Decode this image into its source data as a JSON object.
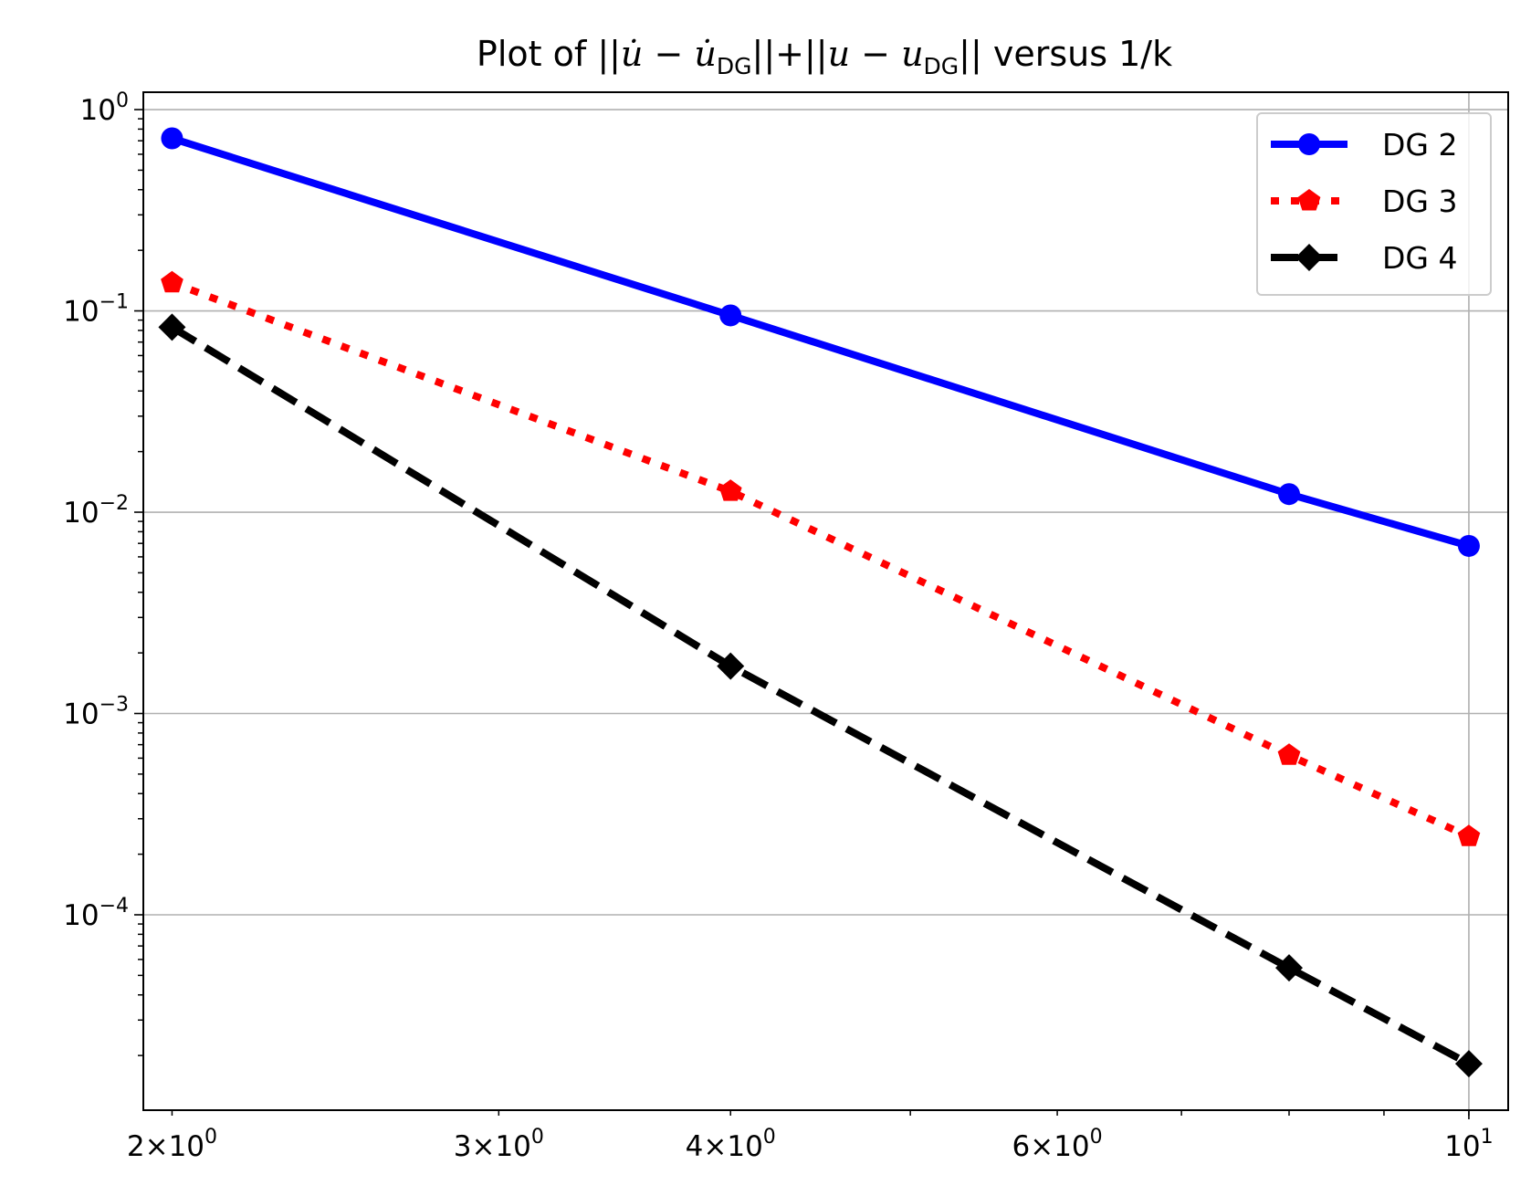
{
  "chart_data": {
    "type": "line",
    "title": {
      "prefix": "Plot of ||",
      "udot1": "u̇",
      "minus1": " − ",
      "udot2": "u̇",
      "sub1": "DG",
      "mid": "||+||",
      "u1": "u",
      "minus2": " − ",
      "u2": "u",
      "sub2": "DG",
      "suffix": "|| versus 1/k"
    },
    "xlabel": "",
    "ylabel": "",
    "x_scale": "log",
    "y_scale": "log",
    "xlim": [
      1.93,
      10.5
    ],
    "ylim": [
      1.07e-05,
      1.22
    ],
    "grid": true,
    "legend_position": "top-right",
    "x_ticks": [
      {
        "value": 2,
        "mantissa": "2",
        "times": "×",
        "base": "10",
        "exp": "0"
      },
      {
        "value": 3,
        "mantissa": "3",
        "times": "×",
        "base": "10",
        "exp": "0"
      },
      {
        "value": 4,
        "mantissa": "4",
        "times": "×",
        "base": "10",
        "exp": "0"
      },
      {
        "value": 6,
        "mantissa": "6",
        "times": "×",
        "base": "10",
        "exp": "0"
      },
      {
        "value": 10,
        "mantissa": "",
        "times": "",
        "base": "10",
        "exp": "1"
      }
    ],
    "y_ticks": [
      {
        "value": 1,
        "base": "10",
        "exp": "0"
      },
      {
        "value": 0.1,
        "base": "10",
        "exp": "−1"
      },
      {
        "value": 0.01,
        "base": "10",
        "exp": "−2"
      },
      {
        "value": 0.001,
        "base": "10",
        "exp": "−3"
      },
      {
        "value": 0.0001,
        "base": "10",
        "exp": "−4"
      }
    ],
    "x": [
      2,
      4,
      8,
      10
    ],
    "series": [
      {
        "name": "DG 2",
        "values": [
          0.72,
          0.095,
          0.0123,
          0.0068
        ],
        "color": "#0000ff",
        "line_style": "solid",
        "marker": "circle"
      },
      {
        "name": "DG 3",
        "values": [
          0.138,
          0.0127,
          0.00062,
          0.000245
        ],
        "color": "#ff0000",
        "line_style": "dotted",
        "marker": "pentagon"
      },
      {
        "name": "DG 4",
        "values": [
          0.083,
          0.00172,
          5.45e-05,
          1.82e-05
        ],
        "color": "#000000",
        "line_style": "dashed",
        "marker": "diamond"
      }
    ]
  }
}
